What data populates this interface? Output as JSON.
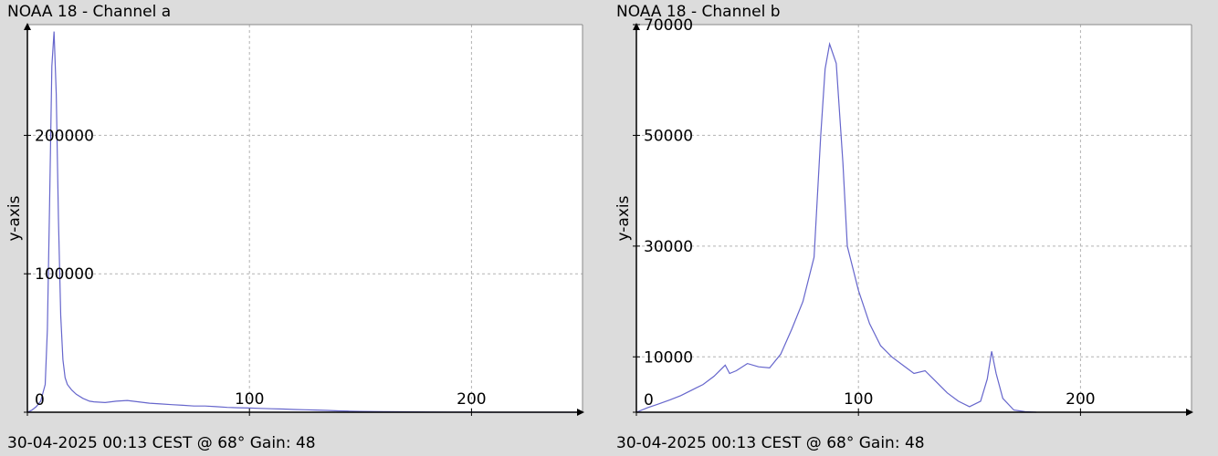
{
  "panels": [
    {
      "title": "NOAA 18 - Channel a",
      "footer": "30-04-2025 00:13 CEST @ 68° Gain: 48"
    },
    {
      "title": "NOAA 18 - Channel b",
      "footer": "30-04-2025 00:13 CEST @ 68° Gain: 48"
    }
  ],
  "chart_data": [
    {
      "type": "line",
      "title": "NOAA 18 - Channel a",
      "ylabel": "y-axis",
      "xlabel": "",
      "xlim": [
        0,
        250
      ],
      "ylim": [
        0,
        280000
      ],
      "xticks": [
        0,
        100,
        200
      ],
      "yticks": [
        0,
        100000,
        200000
      ],
      "tick_labels_x": [
        "100",
        "200"
      ],
      "tick_labels_y": [
        "0",
        "100000",
        "200000"
      ],
      "grid": true,
      "color": "#6666cc",
      "series": [
        {
          "x": [
            0,
            2,
            4,
            6,
            8,
            9,
            10,
            11,
            12,
            13,
            14,
            15,
            16,
            17,
            18,
            20,
            22,
            25,
            28,
            30,
            35,
            40,
            45,
            50,
            55,
            60,
            65,
            70,
            75,
            80,
            85,
            90,
            95,
            100,
            105,
            110,
            115,
            120,
            125,
            130,
            135,
            140,
            145,
            150,
            160,
            170,
            180,
            190,
            200,
            210,
            220,
            230,
            240,
            250
          ],
          "y": [
            0,
            1500,
            4000,
            8000,
            20000,
            60000,
            150000,
            250000,
            275000,
            230000,
            140000,
            70000,
            38000,
            25000,
            20000,
            16000,
            13000,
            10000,
            8000,
            7500,
            7000,
            8000,
            8500,
            7500,
            6500,
            6000,
            5500,
            5000,
            4500,
            4500,
            4000,
            3500,
            3200,
            3000,
            2800,
            2500,
            2300,
            2000,
            1800,
            1600,
            1300,
            1000,
            800,
            600,
            400,
            300,
            200,
            100,
            50,
            0,
            0,
            0,
            0,
            0
          ]
        }
      ]
    },
    {
      "type": "line",
      "title": "NOAA 18 - Channel b",
      "ylabel": "y-axis",
      "xlabel": "",
      "xlim": [
        0,
        250
      ],
      "ylim": [
        0,
        70000
      ],
      "xticks": [
        0,
        100,
        200
      ],
      "yticks": [
        0,
        10000,
        30000,
        50000,
        70000
      ],
      "tick_labels_x": [
        "100",
        "200"
      ],
      "tick_labels_y": [
        "0",
        "10000",
        "30000",
        "50000",
        "70000"
      ],
      "grid": true,
      "color": "#6666cc",
      "series": [
        {
          "x": [
            0,
            5,
            10,
            15,
            20,
            25,
            30,
            35,
            40,
            42,
            45,
            50,
            55,
            60,
            65,
            70,
            75,
            80,
            83,
            85,
            87,
            90,
            93,
            95,
            100,
            105,
            110,
            115,
            120,
            125,
            130,
            135,
            140,
            145,
            150,
            155,
            158,
            160,
            162,
            165,
            170,
            175,
            180
          ],
          "y": [
            0,
            800,
            1500,
            2200,
            3000,
            4000,
            5000,
            6500,
            8500,
            7000,
            7500,
            8800,
            8200,
            8000,
            10500,
            15000,
            20000,
            28000,
            50000,
            62000,
            66500,
            63000,
            45000,
            30000,
            22000,
            16000,
            12000,
            10000,
            8500,
            7000,
            7500,
            5500,
            3500,
            2000,
            1000,
            2000,
            6000,
            11000,
            7000,
            2500,
            400,
            100,
            0
          ]
        }
      ]
    }
  ]
}
